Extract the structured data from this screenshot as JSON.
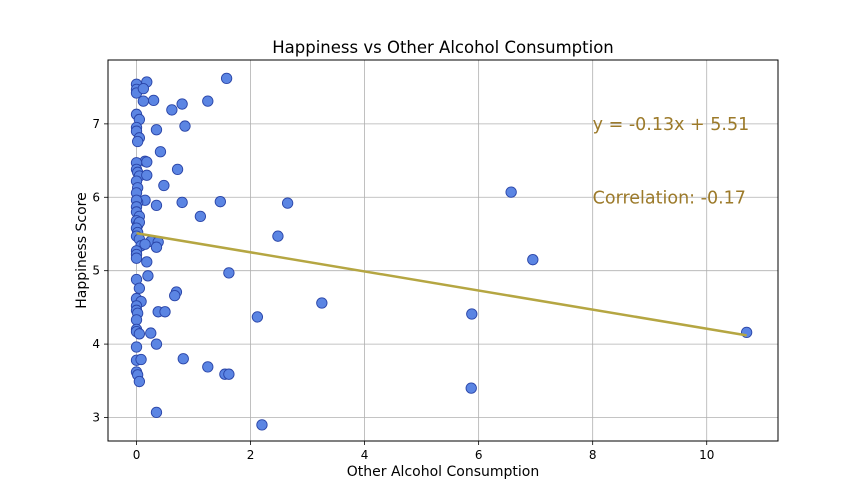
{
  "chart_data": {
    "type": "scatter",
    "title": "Happiness vs Other Alcohol Consumption",
    "xlabel": "Other Alcohol Consumption",
    "ylabel": "Happiness Score",
    "xlim": [
      -0.5,
      11.25
    ],
    "ylim": [
      2.68,
      7.87
    ],
    "xticks": [
      0,
      2,
      4,
      6,
      8,
      10
    ],
    "yticks": [
      3,
      4,
      5,
      6,
      7
    ],
    "grid": true,
    "colors": {
      "marker_fill": "#5b85e3",
      "marker_edge": "#2a45a8",
      "regression_line": "#b5a642",
      "annotation_text": "#9c7a2a"
    },
    "regression": {
      "slope": -0.13,
      "intercept": 5.51,
      "x_start": 0,
      "x_end": 10.7
    },
    "annotations": [
      {
        "text": "y = -0.13x + 5.51",
        "x": 8.0,
        "y": 7.0
      },
      {
        "text": "Correlation:  -0.17",
        "x": 8.0,
        "y": 6.0
      }
    ],
    "points": [
      [
        0.0,
        7.54
      ],
      [
        0.0,
        7.47
      ],
      [
        0.0,
        7.42
      ],
      [
        0.18,
        7.57
      ],
      [
        0.12,
        7.48
      ],
      [
        1.58,
        7.62
      ],
      [
        0.12,
        7.31
      ],
      [
        0.3,
        7.32
      ],
      [
        0.8,
        7.27
      ],
      [
        0.62,
        7.19
      ],
      [
        1.25,
        7.31
      ],
      [
        0.0,
        7.13
      ],
      [
        0.05,
        7.06
      ],
      [
        0.0,
        6.95
      ],
      [
        0.0,
        6.9
      ],
      [
        0.05,
        6.81
      ],
      [
        0.02,
        6.76
      ],
      [
        0.35,
        6.92
      ],
      [
        0.85,
        6.97
      ],
      [
        0.42,
        6.62
      ],
      [
        0.15,
        6.49
      ],
      [
        0.18,
        6.48
      ],
      [
        0.72,
        6.38
      ],
      [
        0.0,
        6.47
      ],
      [
        0.0,
        6.38
      ],
      [
        0.02,
        6.34
      ],
      [
        0.05,
        6.29
      ],
      [
        0.18,
        6.3
      ],
      [
        0.0,
        6.22
      ],
      [
        0.48,
        6.16
      ],
      [
        0.02,
        6.13
      ],
      [
        0.0,
        6.06
      ],
      [
        6.57,
        6.07
      ],
      [
        0.15,
        5.96
      ],
      [
        0.02,
        5.93
      ],
      [
        0.0,
        5.96
      ],
      [
        0.0,
        5.87
      ],
      [
        0.35,
        5.89
      ],
      [
        0.8,
        5.93
      ],
      [
        1.47,
        5.94
      ],
      [
        2.65,
        5.92
      ],
      [
        0.0,
        5.8
      ],
      [
        0.05,
        5.74
      ],
      [
        1.12,
        5.74
      ],
      [
        0.0,
        5.68
      ],
      [
        0.02,
        5.62
      ],
      [
        0.05,
        5.66
      ],
      [
        0.0,
        5.58
      ],
      [
        0.02,
        5.52
      ],
      [
        0.0,
        5.47
      ],
      [
        0.05,
        5.43
      ],
      [
        2.48,
        5.47
      ],
      [
        0.25,
        5.4
      ],
      [
        0.38,
        5.39
      ],
      [
        0.08,
        5.34
      ],
      [
        0.15,
        5.36
      ],
      [
        0.35,
        5.32
      ],
      [
        0.0,
        5.27
      ],
      [
        0.0,
        5.22
      ],
      [
        0.0,
        5.17
      ],
      [
        0.18,
        5.12
      ],
      [
        6.95,
        5.15
      ],
      [
        1.62,
        4.97
      ],
      [
        0.2,
        4.93
      ],
      [
        0.0,
        4.88
      ],
      [
        0.05,
        4.76
      ],
      [
        0.7,
        4.71
      ],
      [
        0.67,
        4.66
      ],
      [
        0.0,
        4.62
      ],
      [
        0.08,
        4.58
      ],
      [
        3.25,
        4.56
      ],
      [
        0.0,
        4.52
      ],
      [
        0.0,
        4.46
      ],
      [
        0.02,
        4.42
      ],
      [
        0.38,
        4.44
      ],
      [
        0.5,
        4.44
      ],
      [
        5.88,
        4.41
      ],
      [
        2.12,
        4.37
      ],
      [
        0.0,
        4.33
      ],
      [
        0.0,
        4.2
      ],
      [
        0.0,
        4.17
      ],
      [
        0.05,
        4.14
      ],
      [
        0.25,
        4.15
      ],
      [
        10.7,
        4.16
      ],
      [
        0.35,
        4.0
      ],
      [
        0.0,
        3.96
      ],
      [
        0.0,
        3.78
      ],
      [
        0.08,
        3.79
      ],
      [
        0.82,
        3.8
      ],
      [
        1.25,
        3.69
      ],
      [
        1.55,
        3.59
      ],
      [
        1.62,
        3.59
      ],
      [
        0.0,
        3.62
      ],
      [
        0.02,
        3.58
      ],
      [
        0.05,
        3.49
      ],
      [
        5.87,
        3.4
      ],
      [
        0.35,
        3.07
      ],
      [
        2.2,
        2.9
      ]
    ]
  }
}
